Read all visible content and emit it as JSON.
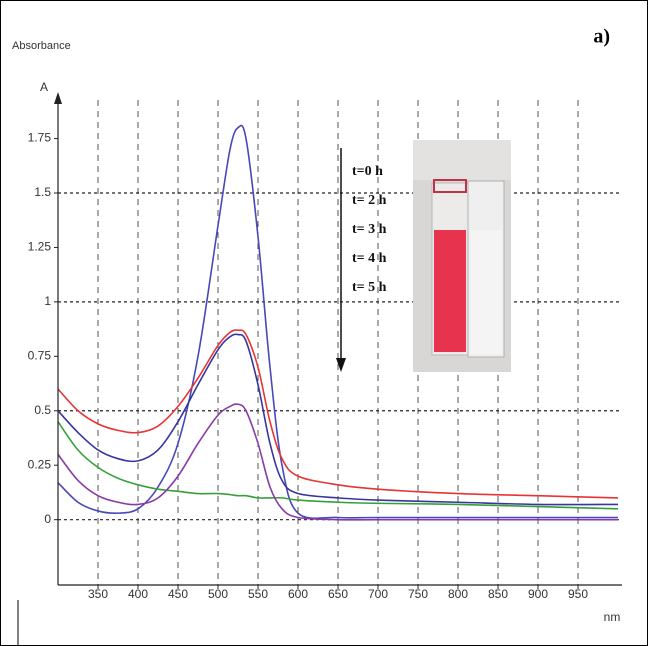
{
  "chart_data": {
    "type": "line",
    "y_axis_title": "Absorbance",
    "y_label": "A",
    "x_label": "nm",
    "panel_label": "a)",
    "annotations": [
      "t=0 h",
      "t= 2 h",
      "t= 3 h",
      "t= 4 h",
      "t= 5 h"
    ],
    "x": [
      300,
      325,
      350,
      375,
      400,
      425,
      450,
      475,
      500,
      515,
      525,
      535,
      550,
      565,
      580,
      600,
      650,
      700,
      800,
      900,
      1000
    ],
    "series": [
      {
        "color": "#4848b8",
        "values": [
          0.17,
          0.08,
          0.04,
          0.03,
          0.05,
          0.15,
          0.35,
          0.75,
          1.35,
          1.7,
          1.8,
          1.75,
          1.3,
          0.7,
          0.25,
          0.03,
          0.01,
          0.01,
          0.01,
          0.01,
          0.01
        ]
      },
      {
        "color": "#e83434",
        "values": [
          0.6,
          0.5,
          0.44,
          0.41,
          0.4,
          0.43,
          0.52,
          0.65,
          0.8,
          0.86,
          0.87,
          0.85,
          0.7,
          0.45,
          0.28,
          0.2,
          0.16,
          0.14,
          0.12,
          0.11,
          0.1
        ]
      },
      {
        "color": "#3636a0",
        "values": [
          0.5,
          0.4,
          0.32,
          0.28,
          0.27,
          0.32,
          0.45,
          0.62,
          0.78,
          0.84,
          0.85,
          0.82,
          0.62,
          0.35,
          0.18,
          0.12,
          0.1,
          0.09,
          0.08,
          0.07,
          0.07
        ]
      },
      {
        "color": "#38a038",
        "values": [
          0.45,
          0.32,
          0.24,
          0.19,
          0.16,
          0.14,
          0.13,
          0.12,
          0.12,
          0.115,
          0.11,
          0.11,
          0.1,
          0.1,
          0.1,
          0.09,
          0.08,
          0.075,
          0.07,
          0.06,
          0.05
        ]
      },
      {
        "color": "#8a3aa8",
        "values": [
          0.3,
          0.18,
          0.11,
          0.08,
          0.07,
          0.1,
          0.2,
          0.35,
          0.48,
          0.52,
          0.53,
          0.5,
          0.35,
          0.15,
          0.05,
          0.01,
          0,
          0,
          0,
          0,
          0
        ]
      }
    ],
    "xlim": [
      300,
      1005
    ],
    "ylim": [
      -0.3,
      1.95
    ],
    "xticks": [
      350,
      400,
      450,
      500,
      550,
      600,
      650,
      700,
      750,
      800,
      850,
      900,
      950
    ],
    "yticks": [
      0,
      0.25,
      0.5,
      0.75,
      1,
      1.25,
      1.5,
      1.75
    ],
    "xgrid": true,
    "ygrid_ticks": [
      0,
      0.5,
      1,
      1.5
    ]
  }
}
